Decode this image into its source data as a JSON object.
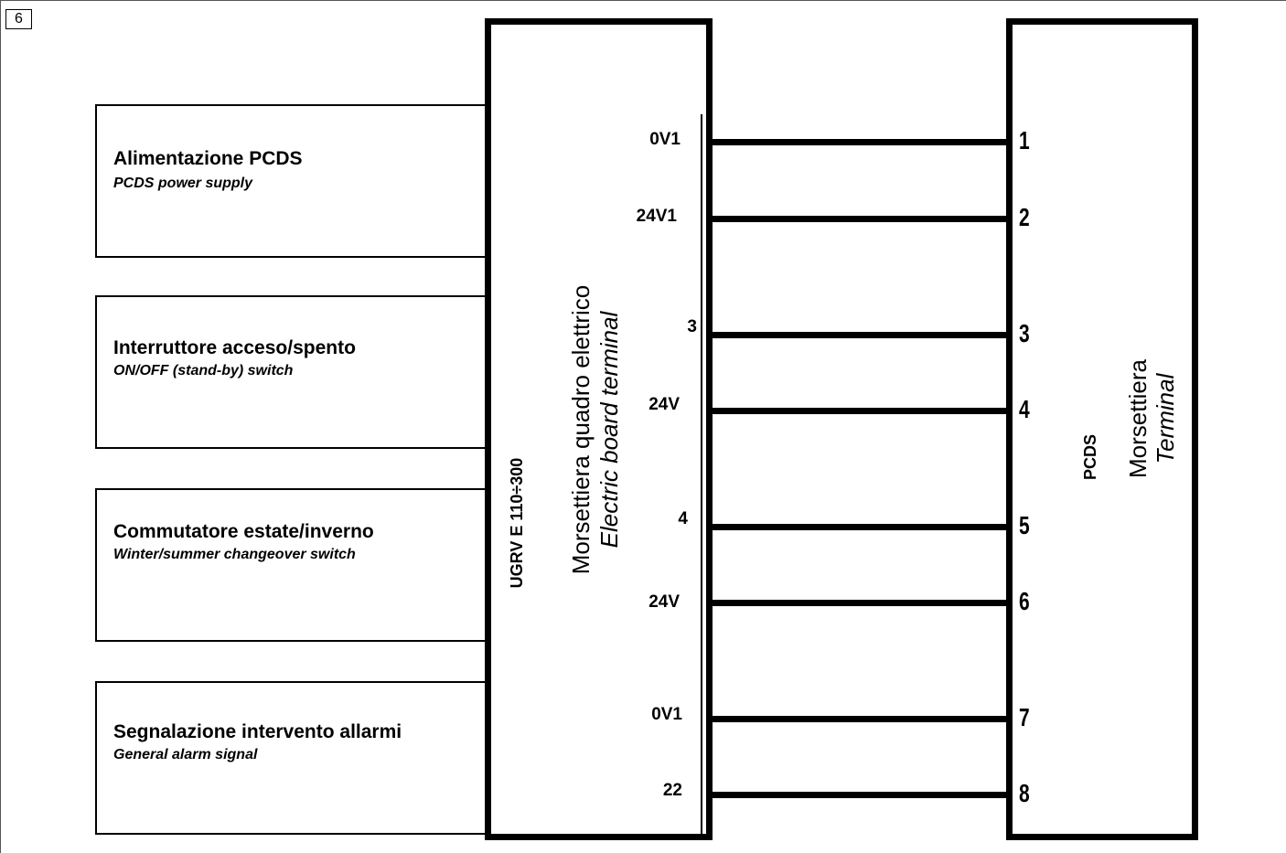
{
  "page_number": "6",
  "functions": [
    {
      "it": "Alimentazione PCDS",
      "en": "PCDS power supply"
    },
    {
      "it": "Interruttore acceso/spento",
      "en": "ON/OFF (stand-by) switch"
    },
    {
      "it": "Commutatore estate/inverno",
      "en": "Winter/summer changeover switch"
    },
    {
      "it": "Segnalazione intervento allarmi",
      "en": "General alarm signal"
    }
  ],
  "left_board": {
    "model": "UGRV E 110÷300",
    "title_it": "Morsettiera quadro elettrico",
    "title_en": "Electric board terminal"
  },
  "right_board": {
    "model": "PCDS",
    "title_it": "Morsettiera",
    "title_en": "Terminal"
  },
  "connections": [
    {
      "from": "0V1",
      "to": "1"
    },
    {
      "from": "24V1",
      "to": "2"
    },
    {
      "from": "3",
      "to": "3"
    },
    {
      "from": "24V",
      "to": "4"
    },
    {
      "from": "4",
      "to": "5"
    },
    {
      "from": "24V",
      "to": "6"
    },
    {
      "from": "0V1",
      "to": "7"
    },
    {
      "from": "22",
      "to": "8"
    }
  ]
}
